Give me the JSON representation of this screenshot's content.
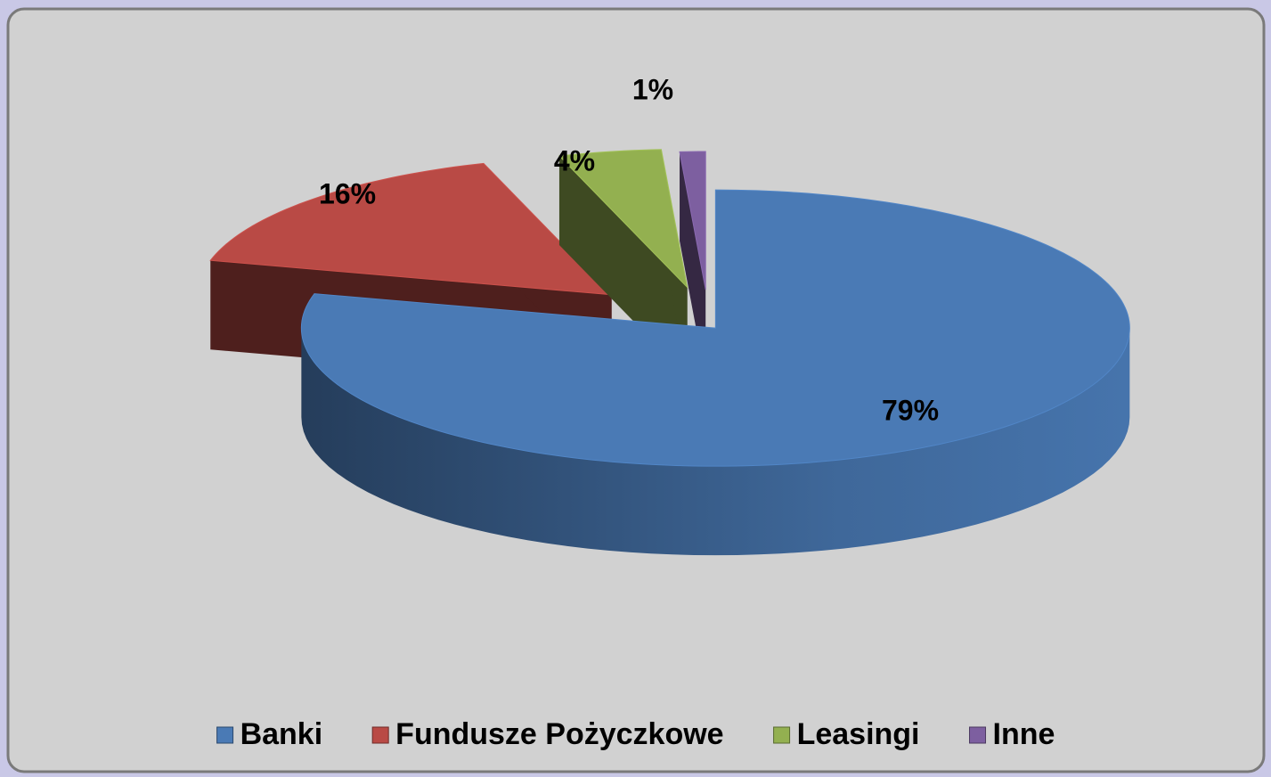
{
  "chart_data": {
    "type": "pie3d",
    "categories": [
      "Banki",
      "Fundusze Pożyczkowe",
      "Leasingi",
      "Inne"
    ],
    "values": [
      79,
      16,
      4,
      1
    ],
    "value_labels": [
      "79%",
      "16%",
      "4%",
      "1%"
    ],
    "colors": [
      "#4a7ab5",
      "#b94a45",
      "#93b050",
      "#7d5fa0"
    ],
    "legend": "bottom"
  }
}
